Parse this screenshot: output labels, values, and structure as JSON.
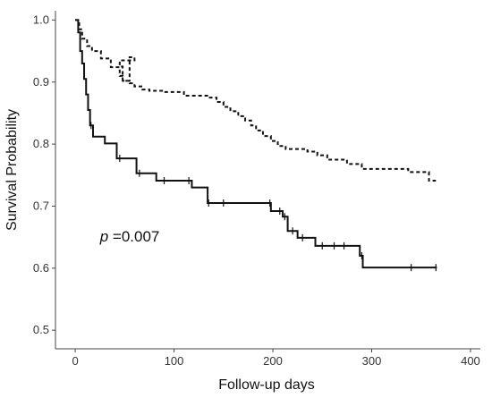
{
  "chart_data": {
    "type": "line",
    "title": "",
    "xlabel": "Follow-up days",
    "ylabel": "Survival Probability",
    "xlim": [
      -20,
      410
    ],
    "ylim": [
      0.47,
      1.015
    ],
    "x_ticks": [
      0,
      100,
      200,
      300,
      400
    ],
    "y_ticks": [
      0.5,
      0.6,
      0.7,
      0.8,
      0.9,
      1.0
    ],
    "y_tick_labels": [
      "0.5",
      "0.6",
      "0.7",
      "0.8",
      "0.9",
      "1.0"
    ],
    "grid": false,
    "legend": "none",
    "annotation": {
      "symbol": "p",
      "text": " =0.007",
      "x": 25,
      "y": 0.643
    },
    "series": [
      {
        "style": "solid",
        "color": "#111111",
        "steps": [
          [
            0,
            1.0
          ],
          [
            3,
            0.98
          ],
          [
            5,
            0.95
          ],
          [
            7,
            0.93
          ],
          [
            9,
            0.905
          ],
          [
            11,
            0.88
          ],
          [
            13,
            0.855
          ],
          [
            15,
            0.83
          ],
          [
            18,
            0.812
          ],
          [
            30,
            0.801
          ],
          [
            42,
            0.777
          ],
          [
            62,
            0.753
          ],
          [
            82,
            0.741
          ],
          [
            118,
            0.73
          ],
          [
            134,
            0.705
          ],
          [
            198,
            0.692
          ],
          [
            210,
            0.683
          ],
          [
            215,
            0.66
          ],
          [
            225,
            0.649
          ],
          [
            243,
            0.636
          ],
          [
            288,
            0.62
          ],
          [
            291,
            0.601
          ],
          [
            366,
            0.601
          ]
        ],
        "censored": [
          [
            16,
            0.83
          ],
          [
            45,
            0.777
          ],
          [
            65,
            0.753
          ],
          [
            90,
            0.741
          ],
          [
            115,
            0.741
          ],
          [
            135,
            0.705
          ],
          [
            150,
            0.705
          ],
          [
            197,
            0.705
          ],
          [
            207,
            0.692
          ],
          [
            212,
            0.683
          ],
          [
            220,
            0.66
          ],
          [
            230,
            0.649
          ],
          [
            250,
            0.636
          ],
          [
            262,
            0.636
          ],
          [
            272,
            0.636
          ],
          [
            290,
            0.62
          ],
          [
            340,
            0.601
          ],
          [
            365,
            0.601
          ]
        ]
      },
      {
        "style": "dashed",
        "color": "#111111",
        "steps": [
          [
            0,
            1.0
          ],
          [
            4,
            0.985
          ],
          [
            7,
            0.97
          ],
          [
            12,
            0.958
          ],
          [
            17,
            0.95
          ],
          [
            26,
            0.938
          ],
          [
            36,
            0.924
          ],
          [
            45,
            0.91
          ],
          [
            48,
            0.902
          ],
          [
            55,
            0.94
          ],
          [
            60,
            0.935
          ],
          [
            45,
            0.925
          ],
          [
            48,
            0.902
          ],
          [
            55,
            0.898
          ],
          [
            60,
            0.893
          ],
          [
            68,
            0.888
          ],
          [
            75,
            0.886
          ],
          [
            90,
            0.884
          ],
          [
            110,
            0.878
          ],
          [
            135,
            0.875
          ],
          [
            143,
            0.868
          ],
          [
            150,
            0.86
          ],
          [
            157,
            0.853
          ],
          [
            165,
            0.845
          ],
          [
            172,
            0.838
          ],
          [
            178,
            0.83
          ],
          [
            183,
            0.822
          ],
          [
            190,
            0.813
          ],
          [
            198,
            0.805
          ],
          [
            205,
            0.797
          ],
          [
            213,
            0.792
          ],
          [
            235,
            0.788
          ],
          [
            245,
            0.782
          ],
          [
            255,
            0.775
          ],
          [
            275,
            0.768
          ],
          [
            290,
            0.76
          ],
          [
            337,
            0.755
          ],
          [
            358,
            0.741
          ],
          [
            365,
            0.741
          ]
        ]
      }
    ]
  }
}
